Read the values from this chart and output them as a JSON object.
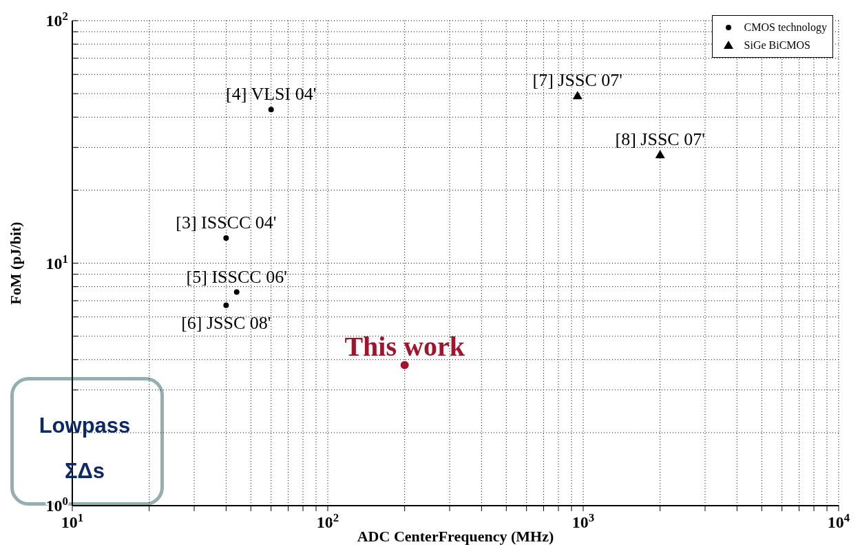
{
  "chart_data": {
    "type": "scatter",
    "xlabel": "ADC CenterFrequency (MHz)",
    "ylabel": "FoM (pJ/bit)",
    "log": "xy",
    "grid": true,
    "legend": "top right",
    "xlim": [
      10,
      10000
    ],
    "xticks": [
      {
        "value": 10,
        "label": "10$^{1}$"
      },
      {
        "value": 20,
        "label": null
      },
      {
        "value": 30,
        "label": null
      },
      {
        "value": 40,
        "label": null
      },
      {
        "value": 50,
        "label": null
      },
      {
        "value": 60,
        "label": null
      },
      {
        "value": 70,
        "label": null
      },
      {
        "value": 80,
        "label": null
      },
      {
        "value": 90,
        "label": null
      },
      {
        "value": 100,
        "label": "10$^{2}$"
      },
      {
        "value": 200,
        "label": null
      },
      {
        "value": 300,
        "label": null
      },
      {
        "value": 400,
        "label": null
      },
      {
        "value": 500,
        "label": null
      },
      {
        "value": 600,
        "label": null
      },
      {
        "value": 700,
        "label": null
      },
      {
        "value": 800,
        "label": null
      },
      {
        "value": 900,
        "label": null
      },
      {
        "value": 1000,
        "label": "10$^{3}$"
      },
      {
        "value": 2000,
        "label": null
      },
      {
        "value": 3000,
        "label": null
      },
      {
        "value": 4000,
        "label": null
      },
      {
        "value": 5000,
        "label": null
      },
      {
        "value": 6000,
        "label": null
      },
      {
        "value": 7000,
        "label": null
      },
      {
        "value": 8000,
        "label": null
      },
      {
        "value": 9000,
        "label": null
      },
      {
        "value": 10000,
        "label": "10$^{4}$"
      }
    ],
    "ylim": [
      1,
      100
    ],
    "yticks": [
      {
        "value": 1,
        "label": "10$^{0}$"
      },
      {
        "value": 2,
        "label": null
      },
      {
        "value": 3,
        "label": null
      },
      {
        "value": 4,
        "label": null
      },
      {
        "value": 5,
        "label": null
      },
      {
        "value": 6,
        "label": null
      },
      {
        "value": 7,
        "label": null
      },
      {
        "value": 8,
        "label": null
      },
      {
        "value": 9,
        "label": null
      },
      {
        "value": 10,
        "label": "10$^{1}$"
      },
      {
        "value": 20,
        "label": null
      },
      {
        "value": 30,
        "label": null
      },
      {
        "value": 40,
        "label": null
      },
      {
        "value": 50,
        "label": null
      },
      {
        "value": 60,
        "label": null
      },
      {
        "value": 70,
        "label": null
      },
      {
        "value": 80,
        "label": null
      },
      {
        "value": 90,
        "label": null
      },
      {
        "value": 100,
        "label": "10$^{2}$"
      }
    ],
    "series": [
      {
        "name": "CMOS technology",
        "color": "#000000",
        "marker": "circle",
        "x": [
          60,
          40,
          44,
          40
        ],
        "values": [
          43,
          12.7,
          7.6,
          6.7
        ]
      },
      {
        "name": "SiGe BiCMOS",
        "color": "#000000",
        "marker": "triangle",
        "x": [
          950,
          2000
        ],
        "values": [
          49,
          28
        ]
      },
      {
        "color": "#a0152b",
        "marker": "circle",
        "x": [
          200
        ],
        "values": [
          3.8
        ]
      }
    ],
    "annotations": [
      {
        "text": "[4] VLSI 04'",
        "x": 60,
        "y": 43
      },
      {
        "text": "[3] ISSCC 04'",
        "x": 40,
        "y": 12.7
      },
      {
        "text": "[5] ISSCC 06'",
        "x": 44,
        "y": 7.6
      },
      {
        "text": "[6] JSSC 08'",
        "x": 40,
        "y": 6.7
      },
      {
        "text": "[7] JSSC 07'",
        "x": 950,
        "y": 49
      },
      {
        "text": "[8] JSSC 07'",
        "x": 2000,
        "y": 28
      },
      {
        "text": "This work",
        "x": 200,
        "y": 3.8
      },
      "Lowpass ΣΔs"
    ]
  }
}
